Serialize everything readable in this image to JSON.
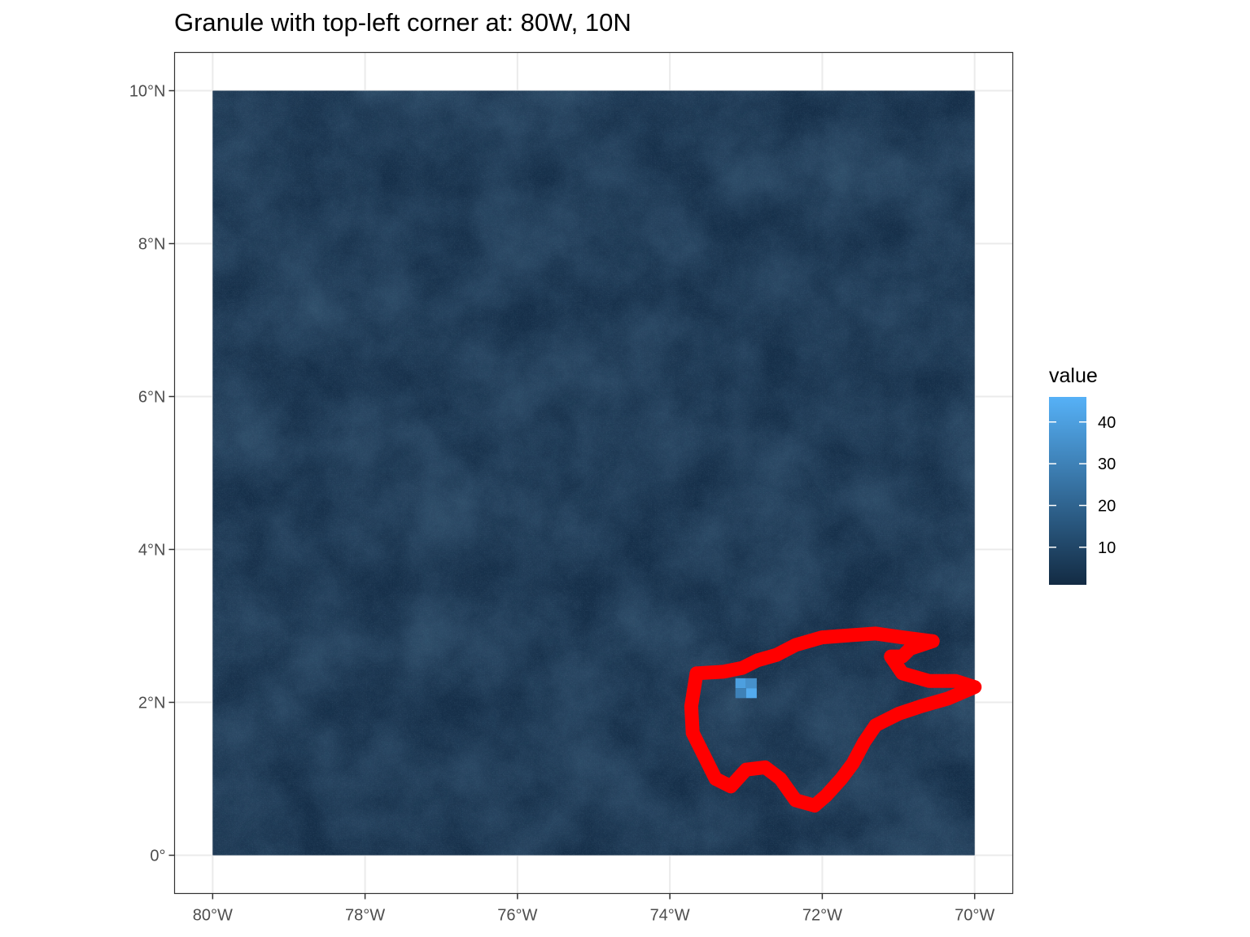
{
  "chart_data": {
    "type": "heatmap",
    "title": "Granule with top-left corner at: 80W, 10N",
    "xlim": [
      -80.5,
      -69.5
    ],
    "ylim": [
      -0.5,
      10.5
    ],
    "x_ticks": [
      {
        "value": -80,
        "label": "80°W"
      },
      {
        "value": -78,
        "label": "78°W"
      },
      {
        "value": -76,
        "label": "76°W"
      },
      {
        "value": -74,
        "label": "74°W"
      },
      {
        "value": -72,
        "label": "72°W"
      },
      {
        "value": -70,
        "label": "70°W"
      }
    ],
    "y_ticks": [
      {
        "value": 0,
        "label": "0°"
      },
      {
        "value": 2,
        "label": "2°N"
      },
      {
        "value": 4,
        "label": "4°N"
      },
      {
        "value": 6,
        "label": "6°N"
      },
      {
        "value": 8,
        "label": "8°N"
      },
      {
        "value": 10,
        "label": "10°N"
      }
    ],
    "grid": true,
    "raster_extent": {
      "xmin": -80,
      "xmax": -70,
      "ymin": 0,
      "ymax": 10
    },
    "raster_value_range": [
      1,
      46
    ],
    "colorbar": {
      "title": "value",
      "ticks": [
        10,
        20,
        30,
        40
      ],
      "range": [
        1,
        46
      ],
      "low_color": "#132B43",
      "high_color": "#56B1F7",
      "position": "right"
    },
    "highlight_cells": [
      {
        "lon": -73.07,
        "lat": 2.25,
        "value": 40
      },
      {
        "lon": -72.93,
        "lat": 2.25,
        "value": 35
      },
      {
        "lon": -73.07,
        "lat": 2.12,
        "value": 30
      },
      {
        "lon": -72.93,
        "lat": 2.12,
        "value": 44
      }
    ],
    "boundary": {
      "color": "#FF0000",
      "coordinates": [
        [
          -73.65,
          2.38
        ],
        [
          -73.3,
          2.4
        ],
        [
          -73.05,
          2.45
        ],
        [
          -72.85,
          2.55
        ],
        [
          -72.6,
          2.62
        ],
        [
          -72.35,
          2.75
        ],
        [
          -72.0,
          2.85
        ],
        [
          -71.6,
          2.88
        ],
        [
          -71.3,
          2.9
        ],
        [
          -70.95,
          2.85
        ],
        [
          -70.55,
          2.8
        ],
        [
          -70.85,
          2.7
        ],
        [
          -70.95,
          2.6
        ],
        [
          -71.1,
          2.6
        ],
        [
          -70.95,
          2.38
        ],
        [
          -70.6,
          2.28
        ],
        [
          -70.25,
          2.28
        ],
        [
          -70.0,
          2.2
        ],
        [
          -70.35,
          2.05
        ],
        [
          -70.7,
          1.95
        ],
        [
          -71.0,
          1.85
        ],
        [
          -71.3,
          1.7
        ],
        [
          -71.45,
          1.48
        ],
        [
          -71.6,
          1.2
        ],
        [
          -71.75,
          1.0
        ],
        [
          -71.95,
          0.78
        ],
        [
          -72.1,
          0.65
        ],
        [
          -72.35,
          0.72
        ],
        [
          -72.55,
          1.0
        ],
        [
          -72.75,
          1.15
        ],
        [
          -73.0,
          1.12
        ],
        [
          -73.2,
          0.9
        ],
        [
          -73.4,
          1.0
        ],
        [
          -73.55,
          1.3
        ],
        [
          -73.7,
          1.6
        ],
        [
          -73.72,
          1.95
        ],
        [
          -73.65,
          2.38
        ]
      ]
    }
  }
}
